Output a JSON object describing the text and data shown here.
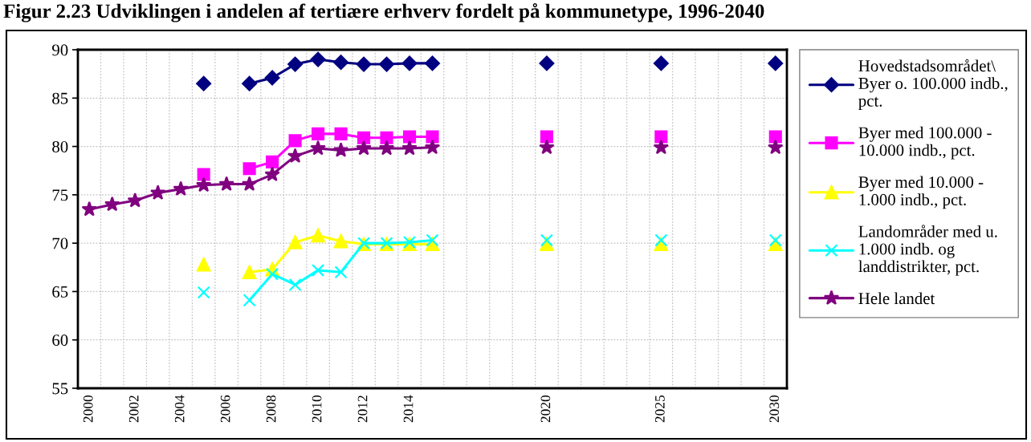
{
  "chart_data": {
    "type": "line",
    "title": "Figur 2.23 Udviklingen i andelen af tertiære erhverv fordelt på kommunetype, 1996-2040",
    "categories": [
      "2000",
      null,
      "2002",
      null,
      "2004",
      null,
      "2006",
      null,
      "2008",
      null,
      "2010",
      null,
      "2012",
      null,
      "2014",
      null,
      null,
      null,
      null,
      null,
      "2020",
      null,
      null,
      null,
      null,
      "2025",
      null,
      null,
      null,
      null,
      "2030"
    ],
    "ylim": [
      55,
      90
    ],
    "yticks": [
      55,
      60,
      65,
      70,
      75,
      80,
      85,
      90
    ],
    "grid": true,
    "legend": "right",
    "series": [
      {
        "name": "Hovedstadsområdet\\ Byer o. 100.000 indb., pct.",
        "color": "#000080",
        "marker": "diamond",
        "values": [
          null,
          null,
          null,
          null,
          null,
          86.5,
          null,
          86.5,
          87.1,
          88.5,
          89.0,
          88.7,
          88.5,
          88.5,
          88.6,
          88.6,
          null,
          null,
          null,
          null,
          88.6,
          null,
          null,
          null,
          null,
          88.6,
          null,
          null,
          null,
          null,
          88.6
        ]
      },
      {
        "name": "Byer med 100.000 - 10.000 indb., pct.",
        "color": "#ff00ff",
        "marker": "square",
        "values": [
          null,
          null,
          null,
          null,
          null,
          77.1,
          null,
          77.7,
          78.4,
          80.6,
          81.3,
          81.3,
          80.9,
          80.9,
          81.0,
          81.0,
          null,
          null,
          null,
          null,
          81.0,
          null,
          null,
          null,
          null,
          81.0,
          null,
          null,
          null,
          null,
          81.0
        ]
      },
      {
        "name": "Byer med 10.000 - 1.000 indb., pct.",
        "color": "#ffff00",
        "marker": "triangle",
        "values": [
          null,
          null,
          null,
          null,
          null,
          67.8,
          null,
          67.0,
          67.3,
          70.1,
          70.8,
          70.2,
          69.9,
          69.9,
          69.9,
          69.9,
          null,
          null,
          null,
          null,
          69.9,
          null,
          null,
          null,
          null,
          69.9,
          null,
          null,
          null,
          null,
          69.9
        ]
      },
      {
        "name": "Landområder med u. 1.000 indb. og landdistrikter, pct.",
        "color": "#00ffff",
        "marker": "cross",
        "values": [
          null,
          null,
          null,
          null,
          null,
          64.9,
          null,
          64.1,
          66.8,
          65.7,
          67.2,
          67.0,
          70.0,
          70.0,
          70.1,
          70.3,
          null,
          null,
          null,
          null,
          70.3,
          null,
          null,
          null,
          null,
          70.3,
          null,
          null,
          null,
          null,
          70.3
        ]
      },
      {
        "name": "Hele landet",
        "color": "#800080",
        "marker": "star",
        "values": [
          73.5,
          74.0,
          74.4,
          75.2,
          75.6,
          76.0,
          76.1,
          76.1,
          77.1,
          79.0,
          79.8,
          79.6,
          79.8,
          79.8,
          79.8,
          79.9,
          null,
          null,
          null,
          null,
          79.9,
          null,
          null,
          null,
          null,
          79.9,
          null,
          null,
          null,
          null,
          79.9
        ]
      }
    ]
  }
}
